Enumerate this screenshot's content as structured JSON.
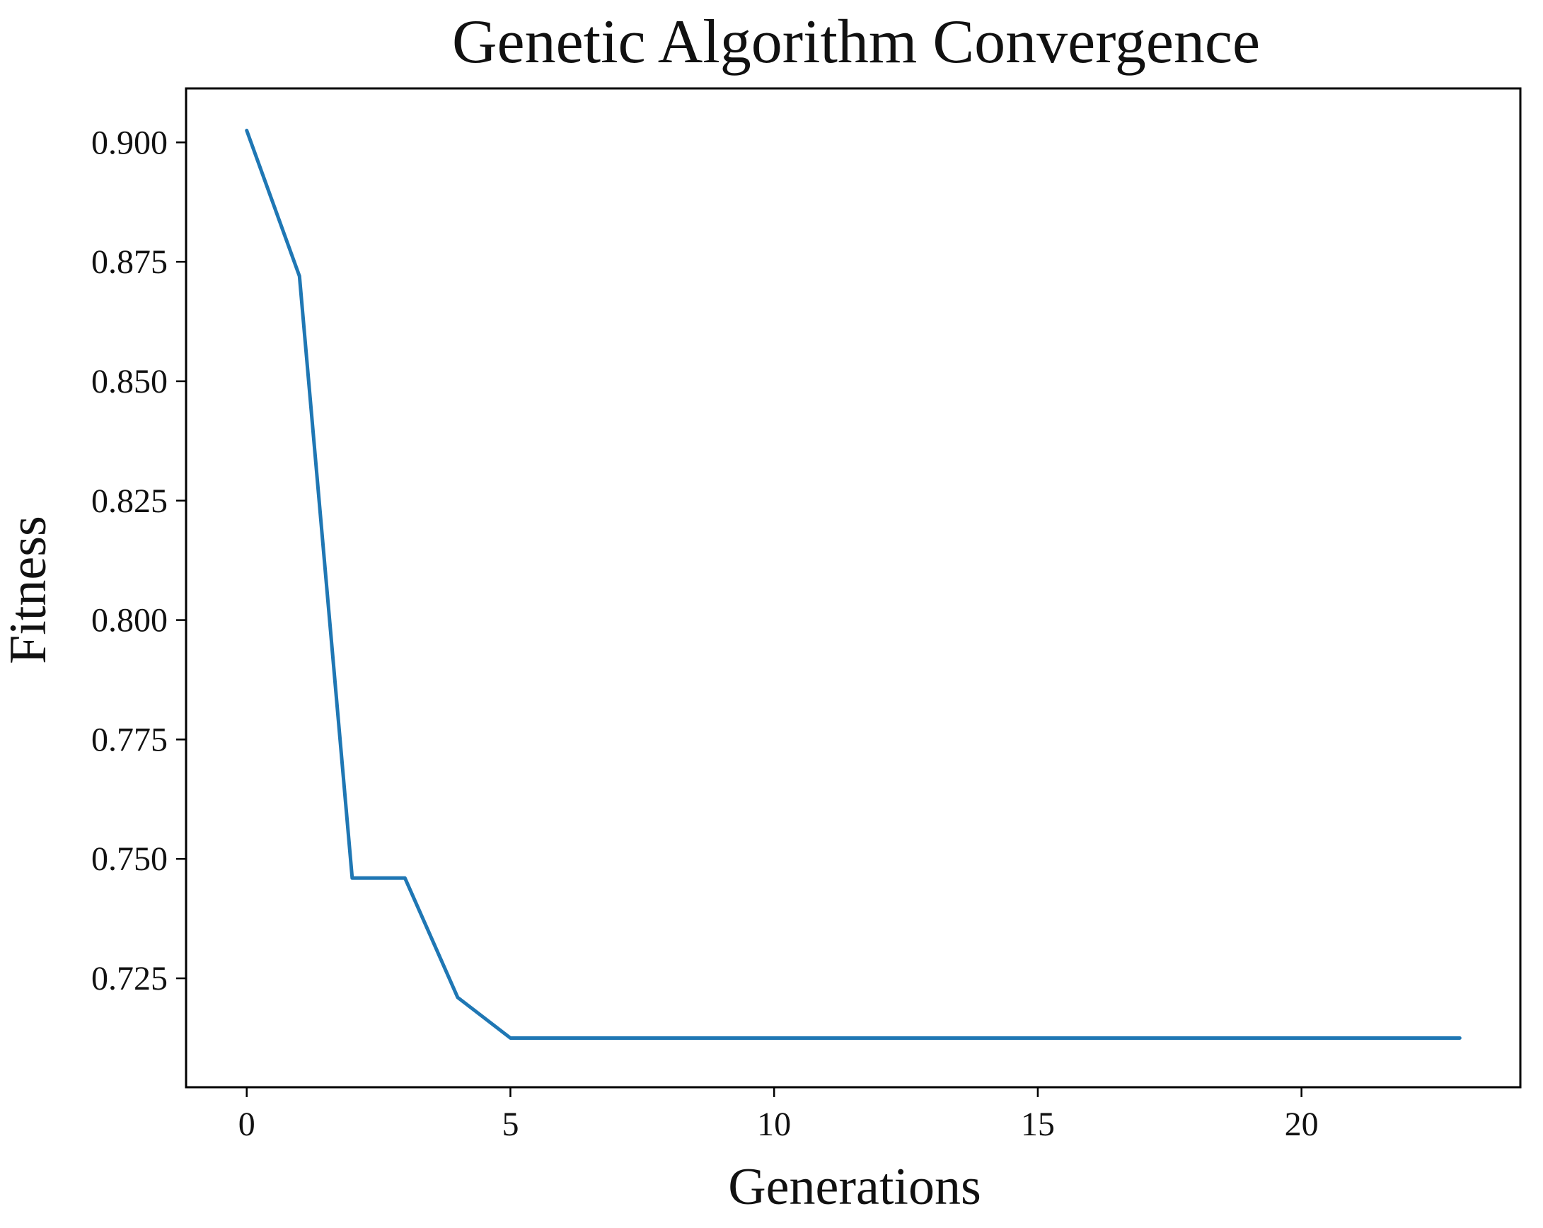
{
  "chart_data": {
    "type": "line",
    "title": "Genetic Algorithm Convergence",
    "xlabel": "Generations",
    "ylabel": "Fitness",
    "x": [
      0,
      1,
      2,
      3,
      4,
      5,
      6,
      7,
      8,
      9,
      10,
      11,
      12,
      13,
      14,
      15,
      16,
      17,
      18,
      19,
      20,
      21,
      22,
      23
    ],
    "series": [
      {
        "values": [
          0.9025,
          0.872,
          0.746,
          0.746,
          0.721,
          0.7125,
          0.7125,
          0.7125,
          0.7125,
          0.7125,
          0.7125,
          0.7125,
          0.7125,
          0.7125,
          0.7125,
          0.7125,
          0.7125,
          0.7125,
          0.7125,
          0.7125,
          0.7125,
          0.7125,
          0.7125,
          0.7125
        ],
        "color": "#1f77b4"
      }
    ],
    "xlim": [
      -1.15,
      24.15
    ],
    "ylim": [
      0.7022,
      0.9113
    ],
    "xticks": [
      0,
      5,
      10,
      15,
      20
    ],
    "xtick_labels": [
      "0",
      "5",
      "10",
      "15",
      "20"
    ],
    "yticks": [
      0.725,
      0.75,
      0.775,
      0.8,
      0.825,
      0.85,
      0.875,
      0.9
    ],
    "ytick_labels": [
      "0.725",
      "0.750",
      "0.775",
      "0.800",
      "0.825",
      "0.850",
      "0.875",
      "0.900"
    ],
    "grid": false,
    "legend": "none"
  }
}
